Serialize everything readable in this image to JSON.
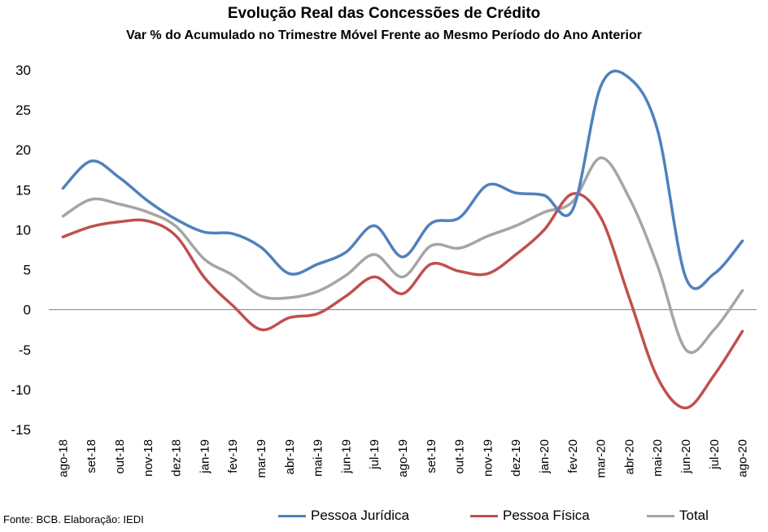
{
  "chart_data": {
    "type": "line",
    "title": "Evolução Real das Concessões de Crédito",
    "subtitle": "Var % do Acumulado  no Trimestre Móvel Frente ao Mesmo Período do Ano Anterior",
    "source": "Fonte: BCB. Elaboração: IEDI",
    "categories": [
      "ago-18",
      "set-18",
      "out-18",
      "nov-18",
      "dez-18",
      "jan-19",
      "fev-19",
      "mar-19",
      "abr-19",
      "mai-19",
      "jun-19",
      "jul-19",
      "ago-19",
      "set-19",
      "out-19",
      "nov-19",
      "dez-19",
      "jan-20",
      "fev-20",
      "mar-20",
      "abr-20",
      "mai-20",
      "jun-20",
      "jul-20",
      "ago-20"
    ],
    "ylim": [
      -15,
      30
    ],
    "yticks": [
      "30",
      "25",
      "20",
      "15",
      "10",
      "5",
      "0",
      "-5",
      "-10",
      "-15"
    ],
    "series": [
      {
        "name": "Pessoa Jurídica",
        "color": "#4f81bd",
        "values": [
          15.2,
          18.6,
          16.5,
          13.6,
          11.3,
          9.7,
          9.5,
          7.8,
          4.5,
          5.7,
          7.2,
          10.5,
          6.6,
          10.8,
          11.5,
          15.6,
          14.6,
          14.3,
          12.5,
          28.0,
          29.0,
          22.5,
          4.0,
          4.5,
          8.6
        ]
      },
      {
        "name": "Pessoa Física",
        "color": "#c0504d",
        "values": [
          9.1,
          10.4,
          11.0,
          11.1,
          9.2,
          4.0,
          0.5,
          -2.5,
          -1.0,
          -0.5,
          1.7,
          4.1,
          2.0,
          5.7,
          4.8,
          4.5,
          6.9,
          10.0,
          14.5,
          11.5,
          1.5,
          -8.5,
          -12.3,
          -8.2,
          -2.7
        ]
      },
      {
        "name": "Total",
        "color": "#a5a5a5",
        "values": [
          11.7,
          13.8,
          13.2,
          12.2,
          10.4,
          6.3,
          4.3,
          1.7,
          1.5,
          2.3,
          4.3,
          6.9,
          4.1,
          8.0,
          7.7,
          9.2,
          10.5,
          12.2,
          13.5,
          19.0,
          14.0,
          5.5,
          -5.0,
          -2.5,
          2.4
        ]
      }
    ]
  }
}
